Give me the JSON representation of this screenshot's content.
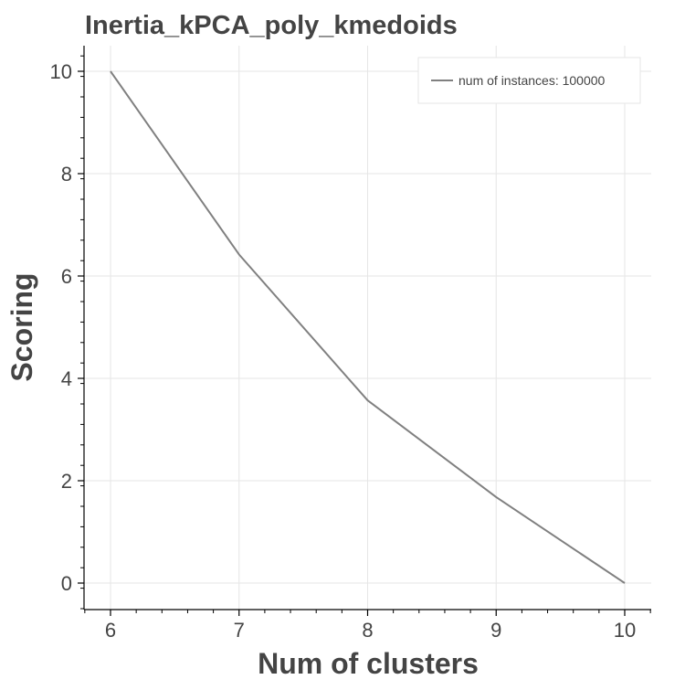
{
  "chart_data": {
    "type": "line",
    "title": "Inertia_kPCA_poly_kmedoids",
    "xlabel": "Num of clusters",
    "ylabel": "Scoring",
    "xlim": [
      5.8,
      10.2
    ],
    "ylim": [
      -0.5,
      10.5
    ],
    "x_ticks": [
      6,
      7,
      8,
      9,
      10
    ],
    "y_ticks": [
      0,
      2,
      4,
      6,
      8,
      10
    ],
    "grid": true,
    "legend_position": "top-right",
    "series": [
      {
        "name": "num of instances: 100000",
        "color": "#808080",
        "x": [
          6,
          7,
          8,
          9,
          10
        ],
        "y": [
          10.0,
          6.42,
          3.57,
          1.68,
          0.0
        ]
      }
    ]
  }
}
